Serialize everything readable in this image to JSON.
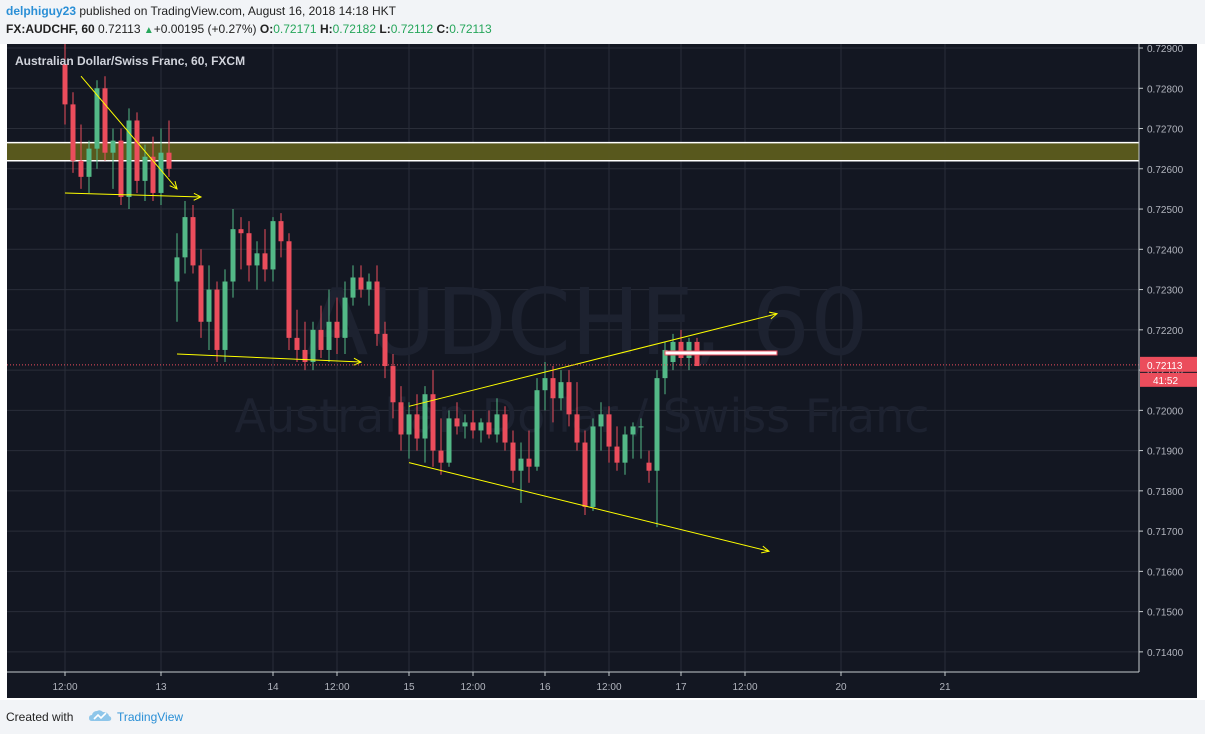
{
  "header": {
    "author": "delphiguy23",
    "published_text": " published on TradingView.com, August 16, 2018 14:18 HKT",
    "symbol": "FX:AUDCHF, 60",
    "last": "0.72113",
    "change": "+0.00195 (+0.27%)",
    "open_label": "O:",
    "open": "0.72171",
    "high_label": "H:",
    "high": "0.72182",
    "low_label": "L:",
    "low": "0.72112",
    "close_label": "C:",
    "close": "0.72113"
  },
  "footer": {
    "created_with": "Created with",
    "brand": "TradingView"
  },
  "colors": {
    "background": "#131722",
    "grid": "#2a2e39",
    "up": "#53b987",
    "down": "#eb4d5c",
    "drawing": "#ffff00",
    "zone_fill": "#5c5c1e",
    "price_marker": "#eb4d5c"
  },
  "chart_data": {
    "type": "candlestick",
    "title": "Australian Dollar/Swiss Franc, 60, FXCM",
    "watermark_symbol": "AUDCHF, 60",
    "watermark_name": "Australian Dollar / Swiss Franc",
    "ylim": [
      0.7135,
      0.7291
    ],
    "y_ticks": [
      "0.72900",
      "0.72800",
      "0.72700",
      "0.72600",
      "0.72500",
      "0.72400",
      "0.72300",
      "0.72200",
      "0.72100",
      "0.72000",
      "0.71900",
      "0.71800",
      "0.71700",
      "0.71600",
      "0.71500",
      "0.71400"
    ],
    "x_ticks": [
      {
        "label": "12:00",
        "i": 0
      },
      {
        "label": "13",
        "i": 12
      },
      {
        "label": "14",
        "i": 26
      },
      {
        "label": "12:00",
        "i": 34
      },
      {
        "label": "15",
        "i": 43
      },
      {
        "label": "12:00",
        "i": 51
      },
      {
        "label": "16",
        "i": 60
      },
      {
        "label": "12:00",
        "i": 68
      },
      {
        "label": "17",
        "i": 77
      },
      {
        "label": "12:00",
        "i": 85
      },
      {
        "label": "20",
        "i": 97
      },
      {
        "label": "21",
        "i": 110
      }
    ],
    "last_price": "0.72113",
    "countdown": "41:52",
    "candles": [
      {
        "o": 0.7286,
        "h": 0.7291,
        "l": 0.7271,
        "c": 0.7276
      },
      {
        "o": 0.7276,
        "h": 0.7279,
        "l": 0.7259,
        "c": 0.7262
      },
      {
        "o": 0.7262,
        "h": 0.7271,
        "l": 0.7255,
        "c": 0.7258
      },
      {
        "o": 0.7258,
        "h": 0.7267,
        "l": 0.7254,
        "c": 0.7265
      },
      {
        "o": 0.7265,
        "h": 0.7282,
        "l": 0.726,
        "c": 0.728
      },
      {
        "o": 0.728,
        "h": 0.7283,
        "l": 0.7262,
        "c": 0.7264
      },
      {
        "o": 0.7264,
        "h": 0.727,
        "l": 0.7255,
        "c": 0.7267
      },
      {
        "o": 0.7267,
        "h": 0.727,
        "l": 0.7251,
        "c": 0.7253
      },
      {
        "o": 0.7253,
        "h": 0.7275,
        "l": 0.725,
        "c": 0.7272
      },
      {
        "o": 0.7272,
        "h": 0.7274,
        "l": 0.7254,
        "c": 0.7257
      },
      {
        "o": 0.7257,
        "h": 0.7266,
        "l": 0.7252,
        "c": 0.7263
      },
      {
        "o": 0.7263,
        "h": 0.7268,
        "l": 0.7252,
        "c": 0.7254
      },
      {
        "o": 0.7254,
        "h": 0.727,
        "l": 0.7251,
        "c": 0.7264
      },
      {
        "o": 0.7264,
        "h": 0.7272,
        "l": 0.7258,
        "c": 0.726
      },
      {
        "o": 0.7232,
        "h": 0.7244,
        "l": 0.7222,
        "c": 0.7238
      },
      {
        "o": 0.7238,
        "h": 0.7252,
        "l": 0.7234,
        "c": 0.7248
      },
      {
        "o": 0.7248,
        "h": 0.7251,
        "l": 0.7234,
        "c": 0.7236
      },
      {
        "o": 0.7236,
        "h": 0.724,
        "l": 0.7218,
        "c": 0.7222
      },
      {
        "o": 0.7222,
        "h": 0.7236,
        "l": 0.7215,
        "c": 0.723
      },
      {
        "o": 0.723,
        "h": 0.7232,
        "l": 0.7212,
        "c": 0.7215
      },
      {
        "o": 0.7215,
        "h": 0.7235,
        "l": 0.7212,
        "c": 0.7232
      },
      {
        "o": 0.7232,
        "h": 0.725,
        "l": 0.7228,
        "c": 0.7245
      },
      {
        "o": 0.7245,
        "h": 0.7248,
        "l": 0.7235,
        "c": 0.7244
      },
      {
        "o": 0.7244,
        "h": 0.7247,
        "l": 0.7232,
        "c": 0.7236
      },
      {
        "o": 0.7236,
        "h": 0.7242,
        "l": 0.723,
        "c": 0.7239
      },
      {
        "o": 0.7239,
        "h": 0.7245,
        "l": 0.7232,
        "c": 0.7235
      },
      {
        "o": 0.7235,
        "h": 0.7248,
        "l": 0.7232,
        "c": 0.7247
      },
      {
        "o": 0.7247,
        "h": 0.7249,
        "l": 0.7238,
        "c": 0.7242
      },
      {
        "o": 0.7242,
        "h": 0.7244,
        "l": 0.7215,
        "c": 0.7218
      },
      {
        "o": 0.7218,
        "h": 0.7225,
        "l": 0.7212,
        "c": 0.7215
      },
      {
        "o": 0.7215,
        "h": 0.7222,
        "l": 0.721,
        "c": 0.7212
      },
      {
        "o": 0.7212,
        "h": 0.7222,
        "l": 0.721,
        "c": 0.722
      },
      {
        "o": 0.722,
        "h": 0.7226,
        "l": 0.7213,
        "c": 0.7215
      },
      {
        "o": 0.7215,
        "h": 0.723,
        "l": 0.7212,
        "c": 0.7222
      },
      {
        "o": 0.7222,
        "h": 0.7228,
        "l": 0.7214,
        "c": 0.7218
      },
      {
        "o": 0.7218,
        "h": 0.7232,
        "l": 0.7214,
        "c": 0.7228
      },
      {
        "o": 0.7228,
        "h": 0.7236,
        "l": 0.7226,
        "c": 0.7233
      },
      {
        "o": 0.7233,
        "h": 0.7236,
        "l": 0.7228,
        "c": 0.723
      },
      {
        "o": 0.723,
        "h": 0.7234,
        "l": 0.7226,
        "c": 0.7232
      },
      {
        "o": 0.7232,
        "h": 0.7236,
        "l": 0.7216,
        "c": 0.7219
      },
      {
        "o": 0.7219,
        "h": 0.7222,
        "l": 0.7208,
        "c": 0.7211
      },
      {
        "o": 0.7211,
        "h": 0.7214,
        "l": 0.7198,
        "c": 0.7202
      },
      {
        "o": 0.7202,
        "h": 0.7206,
        "l": 0.719,
        "c": 0.7194
      },
      {
        "o": 0.7194,
        "h": 0.7202,
        "l": 0.7188,
        "c": 0.7199
      },
      {
        "o": 0.7199,
        "h": 0.7204,
        "l": 0.719,
        "c": 0.7193
      },
      {
        "o": 0.7193,
        "h": 0.7206,
        "l": 0.7187,
        "c": 0.7204
      },
      {
        "o": 0.7204,
        "h": 0.721,
        "l": 0.7186,
        "c": 0.719
      },
      {
        "o": 0.719,
        "h": 0.7198,
        "l": 0.7184,
        "c": 0.7187
      },
      {
        "o": 0.7187,
        "h": 0.72,
        "l": 0.7186,
        "c": 0.7198
      },
      {
        "o": 0.7198,
        "h": 0.7202,
        "l": 0.7194,
        "c": 0.7196
      },
      {
        "o": 0.7196,
        "h": 0.7199,
        "l": 0.7193,
        "c": 0.7197
      },
      {
        "o": 0.7197,
        "h": 0.72,
        "l": 0.7193,
        "c": 0.7195
      },
      {
        "o": 0.7195,
        "h": 0.7198,
        "l": 0.7192,
        "c": 0.7197
      },
      {
        "o": 0.7197,
        "h": 0.72,
        "l": 0.7193,
        "c": 0.7194
      },
      {
        "o": 0.7194,
        "h": 0.7203,
        "l": 0.7192,
        "c": 0.7199
      },
      {
        "o": 0.7199,
        "h": 0.7201,
        "l": 0.719,
        "c": 0.7192
      },
      {
        "o": 0.7192,
        "h": 0.7195,
        "l": 0.7182,
        "c": 0.7185
      },
      {
        "o": 0.7185,
        "h": 0.7192,
        "l": 0.7177,
        "c": 0.7188
      },
      {
        "o": 0.7188,
        "h": 0.7195,
        "l": 0.7182,
        "c": 0.7186
      },
      {
        "o": 0.7186,
        "h": 0.7208,
        "l": 0.7185,
        "c": 0.7205
      },
      {
        "o": 0.7205,
        "h": 0.7212,
        "l": 0.72,
        "c": 0.7208
      },
      {
        "o": 0.7208,
        "h": 0.7211,
        "l": 0.7197,
        "c": 0.7203
      },
      {
        "o": 0.7203,
        "h": 0.721,
        "l": 0.72,
        "c": 0.7207
      },
      {
        "o": 0.7207,
        "h": 0.721,
        "l": 0.7196,
        "c": 0.7199
      },
      {
        "o": 0.7199,
        "h": 0.7207,
        "l": 0.719,
        "c": 0.7192
      },
      {
        "o": 0.7192,
        "h": 0.7195,
        "l": 0.7174,
        "c": 0.7176
      },
      {
        "o": 0.7176,
        "h": 0.7198,
        "l": 0.7175,
        "c": 0.7196
      },
      {
        "o": 0.7196,
        "h": 0.7202,
        "l": 0.719,
        "c": 0.7199
      },
      {
        "o": 0.7199,
        "h": 0.7201,
        "l": 0.7187,
        "c": 0.7191
      },
      {
        "o": 0.7191,
        "h": 0.7196,
        "l": 0.7185,
        "c": 0.7187
      },
      {
        "o": 0.7187,
        "h": 0.7196,
        "l": 0.7184,
        "c": 0.7194
      },
      {
        "o": 0.7194,
        "h": 0.7197,
        "l": 0.7188,
        "c": 0.7196
      },
      {
        "o": 0.7196,
        "h": 0.7198,
        "l": 0.7188,
        "c": 0.7196
      },
      {
        "o": 0.7187,
        "h": 0.719,
        "l": 0.7182,
        "c": 0.7185
      },
      {
        "o": 0.7185,
        "h": 0.721,
        "l": 0.7171,
        "c": 0.7208
      },
      {
        "o": 0.7208,
        "h": 0.7217,
        "l": 0.7204,
        "c": 0.7215
      },
      {
        "o": 0.7212,
        "h": 0.7219,
        "l": 0.721,
        "c": 0.7217
      },
      {
        "o": 0.7217,
        "h": 0.722,
        "l": 0.7211,
        "c": 0.7213
      },
      {
        "o": 0.7213,
        "h": 0.7218,
        "l": 0.721,
        "c": 0.7217
      },
      {
        "o": 0.7217,
        "h": 0.7218,
        "l": 0.7211,
        "c": 0.7211
      }
    ],
    "zone": {
      "top": 0.72665,
      "bottom": 0.7262
    },
    "lines": [
      {
        "i1": 2,
        "p1": 0.7283,
        "i2": 14,
        "p2": 0.7255,
        "arrow": true
      },
      {
        "i1": 0,
        "p1": 0.7254,
        "i2": 17,
        "p2": 0.7253,
        "arrow": true
      },
      {
        "i1": 14,
        "p1": 0.7214,
        "i2": 37,
        "p2": 0.7212,
        "arrow": true
      },
      {
        "i1": 43,
        "p1": 0.7201,
        "i2": 89,
        "p2": 0.7224,
        "arrow": true
      },
      {
        "i1": 43,
        "p1": 0.7187,
        "i2": 88,
        "p2": 0.7165,
        "arrow": true
      }
    ],
    "rect": {
      "i1": 75,
      "i2": 89,
      "p_top": 0.72145,
      "p_bottom": 0.7214
    }
  }
}
